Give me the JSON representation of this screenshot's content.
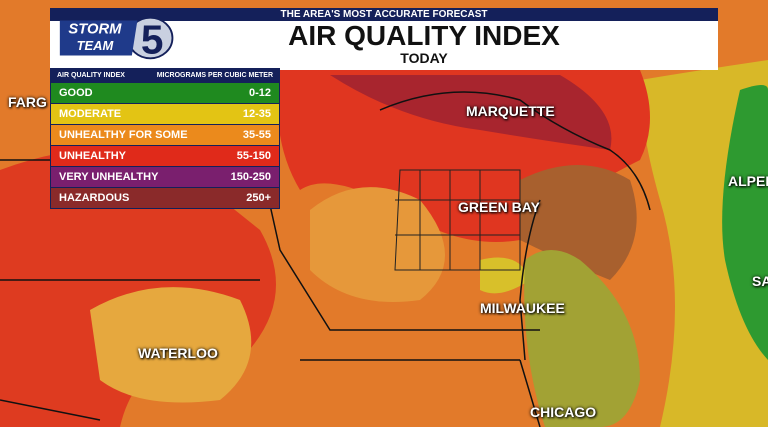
{
  "logo": {
    "line1": "STORM",
    "line2": "TEAM",
    "number": "5"
  },
  "header": {
    "tagline": "THE AREA'S MOST ACCURATE FORECAST",
    "title": "AIR QUALITY INDEX",
    "subtitle": "TODAY"
  },
  "legend": {
    "columns": [
      "AIR QUALITY INDEX",
      "MICROGRAMS PER CUBIC METER"
    ],
    "rows": [
      {
        "label": "GOOD",
        "range": "0-12",
        "color": "#1f8a1f"
      },
      {
        "label": "MODERATE",
        "range": "12-35",
        "color": "#e3c414"
      },
      {
        "label": "UNHEALTHY FOR SOME",
        "range": "35-55",
        "color": "#eb8a1c"
      },
      {
        "label": "UNHEALTHY",
        "range": "55-150",
        "color": "#e02a1a"
      },
      {
        "label": "VERY UNHEALTHY",
        "range": "150-250",
        "color": "#7a1f6e"
      },
      {
        "label": "HAZARDOUS",
        "range": "250+",
        "color": "#8a2a2a"
      }
    ]
  },
  "cities": [
    "FARG",
    "MARQUETTE",
    "GREEN BAY",
    "MILWAUKEE",
    "WATERLOO",
    "CHICAGO",
    "ALPEN",
    "SA"
  ]
}
